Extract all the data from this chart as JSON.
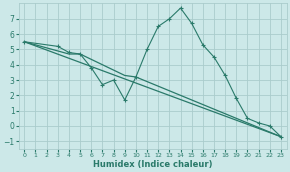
{
  "xlabel": "Humidex (Indice chaleur)",
  "xlim": [
    -0.5,
    23.5
  ],
  "ylim": [
    -1.5,
    8.0
  ],
  "yticks": [
    -1,
    0,
    1,
    2,
    3,
    4,
    5,
    6,
    7
  ],
  "xticks": [
    0,
    1,
    2,
    3,
    4,
    5,
    6,
    7,
    8,
    9,
    10,
    11,
    12,
    13,
    14,
    15,
    16,
    17,
    18,
    19,
    20,
    21,
    22,
    23
  ],
  "bg_color": "#cce8e8",
  "grid_color": "#aacccc",
  "line_color": "#2a7a6a",
  "curve_x": [
    0,
    3,
    4,
    5,
    6,
    7,
    8,
    9,
    10,
    11,
    12,
    13,
    14,
    15,
    16,
    17,
    18,
    19,
    20,
    21,
    22,
    23
  ],
  "curve_y": [
    5.5,
    5.2,
    4.8,
    4.7,
    3.8,
    2.7,
    3.0,
    1.7,
    3.2,
    5.0,
    6.5,
    7.0,
    7.7,
    6.7,
    5.3,
    4.5,
    3.3,
    1.8,
    0.5,
    0.2,
    0.0,
    -0.7
  ],
  "line1_x": [
    0,
    23
  ],
  "line1_y": [
    5.5,
    -0.7
  ],
  "line2_x": [
    0,
    4,
    5,
    9,
    10,
    23
  ],
  "line2_y": [
    5.5,
    4.7,
    4.7,
    3.3,
    3.2,
    -0.7
  ]
}
